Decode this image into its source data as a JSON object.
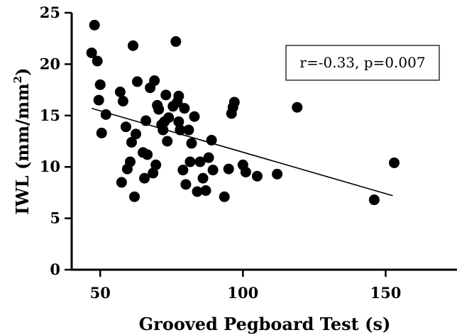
{
  "chart_data": {
    "type": "scatter",
    "xlabel": "Grooved Pegboard Test (s)",
    "ylabel_main": "IWL (mm/mm",
    "ylabel_sup": "2",
    "ylabel_tail": ")",
    "xlim": [
      40,
      175
    ],
    "ylim": [
      0,
      25
    ],
    "xticks": [
      50,
      100,
      150
    ],
    "yticks": [
      0,
      5,
      10,
      15,
      20,
      25
    ],
    "xtick_labels": [
      "50",
      "100",
      "150"
    ],
    "ytick_labels": [
      "0",
      "5",
      "10",
      "15",
      "20",
      "25"
    ],
    "annotation": "r=-0.33, p=0.007",
    "annotation_position": "top-right",
    "regression_line": {
      "x": [
        47,
        152.5
      ],
      "y": [
        15.7,
        7.2
      ]
    },
    "points": [
      {
        "x": 47,
        "y": 21.1
      },
      {
        "x": 48,
        "y": 23.8
      },
      {
        "x": 49,
        "y": 20.3
      },
      {
        "x": 49.5,
        "y": 16.5
      },
      {
        "x": 50,
        "y": 18.0
      },
      {
        "x": 50.5,
        "y": 13.3
      },
      {
        "x": 52,
        "y": 15.1
      },
      {
        "x": 57,
        "y": 17.3
      },
      {
        "x": 57.5,
        "y": 8.5
      },
      {
        "x": 58,
        "y": 16.4
      },
      {
        "x": 59,
        "y": 13.9
      },
      {
        "x": 59.5,
        "y": 9.8
      },
      {
        "x": 60.5,
        "y": 10.5
      },
      {
        "x": 61,
        "y": 12.4
      },
      {
        "x": 61.5,
        "y": 21.8
      },
      {
        "x": 62,
        "y": 7.1
      },
      {
        "x": 62.5,
        "y": 13.2
      },
      {
        "x": 63,
        "y": 18.3
      },
      {
        "x": 65,
        "y": 11.4
      },
      {
        "x": 65.5,
        "y": 8.9
      },
      {
        "x": 66,
        "y": 14.5
      },
      {
        "x": 66.5,
        "y": 11.2
      },
      {
        "x": 67.5,
        "y": 17.7
      },
      {
        "x": 68.5,
        "y": 9.4
      },
      {
        "x": 69,
        "y": 18.4
      },
      {
        "x": 69.5,
        "y": 10.2
      },
      {
        "x": 70,
        "y": 16.0
      },
      {
        "x": 70.5,
        "y": 15.6
      },
      {
        "x": 71.5,
        "y": 14.1
      },
      {
        "x": 72,
        "y": 13.6
      },
      {
        "x": 72.5,
        "y": 14.4
      },
      {
        "x": 73,
        "y": 17.0
      },
      {
        "x": 73.5,
        "y": 12.5
      },
      {
        "x": 74,
        "y": 14.8
      },
      {
        "x": 75.5,
        "y": 15.9
      },
      {
        "x": 76.5,
        "y": 22.2
      },
      {
        "x": 77,
        "y": 16.3
      },
      {
        "x": 77.5,
        "y": 14.4
      },
      {
        "x": 77.5,
        "y": 16.9
      },
      {
        "x": 78,
        "y": 13.6
      },
      {
        "x": 79,
        "y": 9.7
      },
      {
        "x": 79.5,
        "y": 15.7
      },
      {
        "x": 80,
        "y": 8.3
      },
      {
        "x": 81,
        "y": 13.6
      },
      {
        "x": 81.5,
        "y": 10.5
      },
      {
        "x": 82,
        "y": 12.3
      },
      {
        "x": 83,
        "y": 14.9
      },
      {
        "x": 84,
        "y": 7.6
      },
      {
        "x": 85,
        "y": 10.5
      },
      {
        "x": 86,
        "y": 8.9
      },
      {
        "x": 87,
        "y": 7.7
      },
      {
        "x": 88,
        "y": 10.9
      },
      {
        "x": 89,
        "y": 12.6
      },
      {
        "x": 89.5,
        "y": 9.7
      },
      {
        "x": 93.5,
        "y": 7.1
      },
      {
        "x": 95,
        "y": 9.8
      },
      {
        "x": 96,
        "y": 15.2
      },
      {
        "x": 96.5,
        "y": 15.8
      },
      {
        "x": 97,
        "y": 16.3
      },
      {
        "x": 100,
        "y": 10.2
      },
      {
        "x": 101,
        "y": 9.5
      },
      {
        "x": 105,
        "y": 9.1
      },
      {
        "x": 112,
        "y": 9.3
      },
      {
        "x": 119,
        "y": 15.8
      },
      {
        "x": 146,
        "y": 6.8
      },
      {
        "x": 153,
        "y": 10.4
      }
    ]
  }
}
